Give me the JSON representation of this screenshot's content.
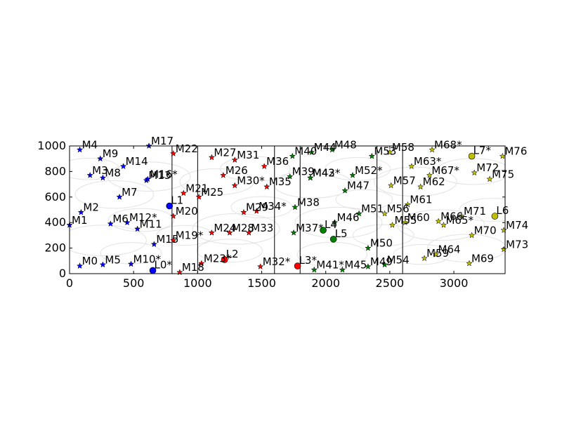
{
  "chart_data": {
    "type": "scatter",
    "title": "",
    "xlabel": "",
    "ylabel": "",
    "xlim": [
      0,
      3400
    ],
    "ylim": [
      0,
      1000
    ],
    "x_ticks": [
      0,
      500,
      1000,
      1500,
      2000,
      2500,
      3000
    ],
    "y_ticks": [
      0,
      200,
      400,
      600,
      800,
      1000
    ],
    "grid": false,
    "legend": "none",
    "dividers_x": [
      800,
      1000,
      1600,
      1800,
      2400,
      2600
    ],
    "background_circles": [
      {
        "cx": 150,
        "cy": 820,
        "r": 140
      },
      {
        "cx": 350,
        "cy": 620,
        "r": 180
      },
      {
        "cx": 260,
        "cy": 260,
        "r": 200
      },
      {
        "cx": 560,
        "cy": 420,
        "r": 150
      },
      {
        "cx": 620,
        "cy": 760,
        "r": 190
      },
      {
        "cx": 480,
        "cy": 160,
        "r": 140
      },
      {
        "cx": 900,
        "cy": 300,
        "r": 130
      },
      {
        "cx": 1150,
        "cy": 720,
        "r": 170
      },
      {
        "cx": 1300,
        "cy": 350,
        "r": 200
      },
      {
        "cx": 1450,
        "cy": 820,
        "r": 160
      },
      {
        "cx": 1250,
        "cy": 180,
        "r": 150
      },
      {
        "cx": 1500,
        "cy": 520,
        "r": 140
      },
      {
        "cx": 1900,
        "cy": 700,
        "r": 180
      },
      {
        "cx": 2100,
        "cy": 400,
        "r": 200
      },
      {
        "cx": 2250,
        "cy": 820,
        "r": 150
      },
      {
        "cx": 2050,
        "cy": 150,
        "r": 160
      },
      {
        "cx": 2300,
        "cy": 580,
        "r": 130
      },
      {
        "cx": 2700,
        "cy": 720,
        "r": 190
      },
      {
        "cx": 2900,
        "cy": 380,
        "r": 200
      },
      {
        "cx": 3150,
        "cy": 800,
        "r": 170
      },
      {
        "cx": 3100,
        "cy": 200,
        "r": 180
      },
      {
        "cx": 3300,
        "cy": 500,
        "r": 150
      },
      {
        "cx": 2750,
        "cy": 150,
        "r": 130
      },
      {
        "cx": 2450,
        "cy": 300,
        "r": 140
      }
    ],
    "series": [
      {
        "color": "#0000ff",
        "stars": [
          {
            "label": "M0",
            "x": 80,
            "y": 60
          },
          {
            "label": "M1",
            "x": 0,
            "y": 380
          },
          {
            "label": "M2",
            "x": 90,
            "y": 480
          },
          {
            "label": "M3",
            "x": 160,
            "y": 770
          },
          {
            "label": "M4",
            "x": 80,
            "y": 970
          },
          {
            "label": "M5",
            "x": 260,
            "y": 70
          },
          {
            "label": "M6",
            "x": 320,
            "y": 390
          },
          {
            "label": "M7",
            "x": 390,
            "y": 600
          },
          {
            "label": "M8",
            "x": 260,
            "y": 750
          },
          {
            "label": "M9",
            "x": 240,
            "y": 900
          },
          {
            "label": "M10*",
            "x": 480,
            "y": 75
          },
          {
            "label": "M11",
            "x": 530,
            "y": 350
          },
          {
            "label": "M12*",
            "x": 450,
            "y": 400
          },
          {
            "label": "M13",
            "x": 600,
            "y": 730
          },
          {
            "label": "M14",
            "x": 420,
            "y": 840
          },
          {
            "label": "M15",
            "x": 660,
            "y": 230
          },
          {
            "label": "M16*",
            "x": 610,
            "y": 740
          },
          {
            "label": "M17",
            "x": 620,
            "y": 1000
          }
        ],
        "landmarks": [
          {
            "label": "L0*",
            "x": 650,
            "y": 25
          },
          {
            "label": "L1",
            "x": 780,
            "y": 530
          }
        ]
      },
      {
        "color": "#ff0000",
        "stars": [
          {
            "label": "M18",
            "x": 860,
            "y": 10
          },
          {
            "label": "M19*",
            "x": 810,
            "y": 260
          },
          {
            "label": "M20",
            "x": 810,
            "y": 450
          },
          {
            "label": "M21",
            "x": 890,
            "y": 630
          },
          {
            "label": "M22",
            "x": 810,
            "y": 940
          },
          {
            "label": "M23*",
            "x": 1030,
            "y": 80
          },
          {
            "label": "M24",
            "x": 1110,
            "y": 320
          },
          {
            "label": "M25",
            "x": 1010,
            "y": 600
          },
          {
            "label": "M26",
            "x": 1200,
            "y": 770
          },
          {
            "label": "M27",
            "x": 1110,
            "y": 910
          },
          {
            "label": "M28",
            "x": 1250,
            "y": 320
          },
          {
            "label": "M29",
            "x": 1360,
            "y": 480
          },
          {
            "label": "M30*",
            "x": 1290,
            "y": 690
          },
          {
            "label": "M31",
            "x": 1290,
            "y": 890
          },
          {
            "label": "M32*",
            "x": 1490,
            "y": 55
          },
          {
            "label": "M33",
            "x": 1400,
            "y": 320
          },
          {
            "label": "M34*",
            "x": 1460,
            "y": 490
          },
          {
            "label": "M35",
            "x": 1540,
            "y": 680
          },
          {
            "label": "M36",
            "x": 1520,
            "y": 840
          }
        ],
        "landmarks": [
          {
            "label": "L2",
            "x": 1210,
            "y": 110
          },
          {
            "label": "L3*",
            "x": 1780,
            "y": 60
          }
        ]
      },
      {
        "color": "#008000",
        "stars": [
          {
            "label": "M37*",
            "x": 1750,
            "y": 320
          },
          {
            "label": "M38",
            "x": 1760,
            "y": 520
          },
          {
            "label": "M39",
            "x": 1720,
            "y": 760
          },
          {
            "label": "M40",
            "x": 1740,
            "y": 920
          },
          {
            "label": "M41*",
            "x": 1910,
            "y": 30
          },
          {
            "label": "M42*",
            "x": 1880,
            "y": 750
          },
          {
            "label": "M43",
            "x": 1880,
            "y": 750
          },
          {
            "label": "M44",
            "x": 1890,
            "y": 950
          },
          {
            "label": "M45",
            "x": 2130,
            "y": 30
          },
          {
            "label": "M46",
            "x": 2070,
            "y": 400
          },
          {
            "label": "M47",
            "x": 2150,
            "y": 650
          },
          {
            "label": "M48",
            "x": 2050,
            "y": 970
          },
          {
            "label": "M49",
            "x": 2330,
            "y": 55
          },
          {
            "label": "M50",
            "x": 2330,
            "y": 200
          },
          {
            "label": "M51",
            "x": 2260,
            "y": 470
          },
          {
            "label": "M52*",
            "x": 2210,
            "y": 770
          },
          {
            "label": "M53",
            "x": 2360,
            "y": 920
          },
          {
            "label": "M54",
            "x": 2460,
            "y": 70
          }
        ],
        "landmarks": [
          {
            "label": "L4",
            "x": 1980,
            "y": 340
          },
          {
            "label": "L5",
            "x": 2060,
            "y": 270
          }
        ]
      },
      {
        "color": "#bfbf00",
        "stars": [
          {
            "label": "M55",
            "x": 2520,
            "y": 380
          },
          {
            "label": "M56",
            "x": 2460,
            "y": 470
          },
          {
            "label": "M57",
            "x": 2510,
            "y": 690
          },
          {
            "label": "M58",
            "x": 2500,
            "y": 950
          },
          {
            "label": "M59",
            "x": 2770,
            "y": 120
          },
          {
            "label": "M60",
            "x": 2620,
            "y": 400
          },
          {
            "label": "M61",
            "x": 2640,
            "y": 540
          },
          {
            "label": "M62",
            "x": 2740,
            "y": 680
          },
          {
            "label": "M63*",
            "x": 2670,
            "y": 840
          },
          {
            "label": "M64",
            "x": 2860,
            "y": 150
          },
          {
            "label": "M65*",
            "x": 2920,
            "y": 380
          },
          {
            "label": "M66",
            "x": 2880,
            "y": 410
          },
          {
            "label": "M67*",
            "x": 2810,
            "y": 770
          },
          {
            "label": "M68*",
            "x": 2830,
            "y": 970
          },
          {
            "label": "M69",
            "x": 3120,
            "y": 80
          },
          {
            "label": "M70",
            "x": 3140,
            "y": 300
          },
          {
            "label": "M71",
            "x": 3060,
            "y": 450
          },
          {
            "label": "M72",
            "x": 3160,
            "y": 790
          },
          {
            "label": "M73",
            "x": 3390,
            "y": 190
          },
          {
            "label": "M74",
            "x": 3390,
            "y": 340
          },
          {
            "label": "M75",
            "x": 3280,
            "y": 740
          },
          {
            "label": "M76",
            "x": 3380,
            "y": 920
          }
        ],
        "landmarks": [
          {
            "label": "L6",
            "x": 3320,
            "y": 450
          },
          {
            "label": "L7*",
            "x": 3140,
            "y": 920
          }
        ]
      }
    ]
  }
}
